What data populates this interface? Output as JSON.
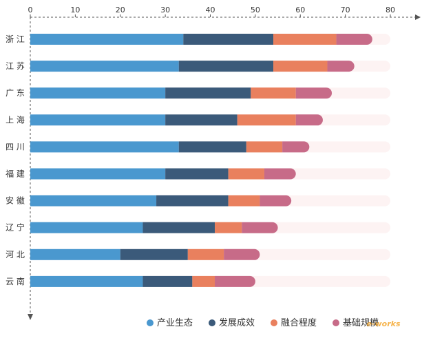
{
  "chart_data": {
    "type": "bar",
    "orientation": "horizontal",
    "stacked": true,
    "title": "",
    "xlabel": "",
    "ylabel": "",
    "xlim": [
      0,
      80
    ],
    "x_ticks": [
      0,
      10,
      20,
      30,
      40,
      50,
      60,
      70,
      80
    ],
    "grid": false,
    "legend_position": "bottom-right",
    "categories": [
      "浙 江",
      "江 苏",
      "广 东",
      "上 海",
      "四 川",
      "福 建",
      "安 徽",
      "辽 宁",
      "河 北",
      "云 南"
    ],
    "series": [
      {
        "name": "产业生态",
        "color": "#4a98cf",
        "values": [
          34,
          33,
          30,
          30,
          33,
          30,
          28,
          25,
          20,
          25
        ]
      },
      {
        "name": "发展成效",
        "color": "#3b5a7a",
        "values": [
          20,
          21,
          19,
          16,
          15,
          14,
          16,
          16,
          15,
          11
        ]
      },
      {
        "name": "融合程度",
        "color": "#e9805e",
        "values": [
          14,
          12,
          10,
          13,
          8,
          8,
          7,
          6,
          8,
          5
        ]
      },
      {
        "name": "基础规模",
        "color": "#c76b88",
        "values": [
          8,
          6,
          8,
          6,
          6,
          7,
          7,
          8,
          8,
          9
        ]
      }
    ],
    "background_track_color": "#fdf3f3"
  },
  "watermark": {
    "text": "e-works"
  }
}
